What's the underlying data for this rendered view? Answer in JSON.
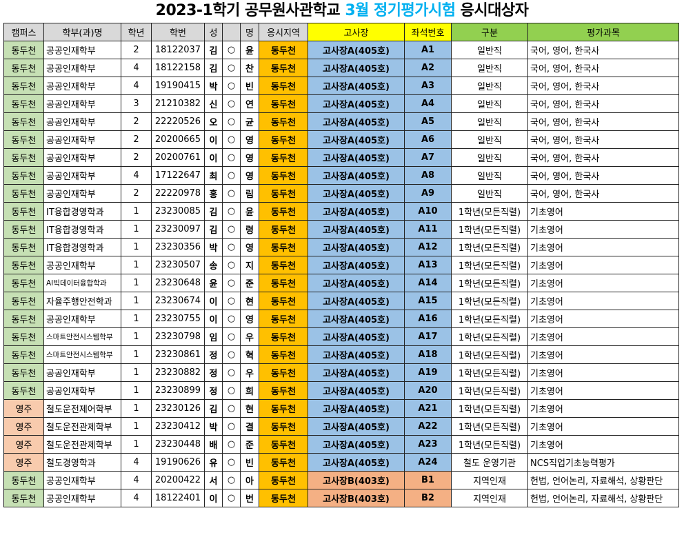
{
  "title": {
    "part1": "2023-1학기 공무원사관학교 ",
    "highlight": "3월 정기평가시험",
    "part2": " 응시대상자"
  },
  "colors": {
    "highlight": "#00b0f0",
    "campus_dongducheon": "#c6e0b4",
    "campus_yeongju": "#f8cbad",
    "region": "#ffc000",
    "room_a": "#9bc2e6",
    "room_b": "#f4b084",
    "header_yellow": "#ffff00",
    "header_green": "#92d050"
  },
  "columns": [
    "캠퍼스",
    "학부(과)명",
    "학년",
    "학번",
    "성",
    "",
    "명",
    "응시지역",
    "고사장",
    "좌석번호",
    "구분",
    "평가과목"
  ],
  "rows": [
    [
      "동두천",
      "공공인재학부",
      "2",
      "18122037",
      "김",
      "○",
      "윤",
      "동두천",
      "고사장A(405호)",
      "A1",
      "일반직",
      "국어, 영어, 한국사"
    ],
    [
      "동두천",
      "공공인재학부",
      "4",
      "18122158",
      "김",
      "○",
      "찬",
      "동두천",
      "고사장A(405호)",
      "A2",
      "일반직",
      "국어, 영어, 한국사"
    ],
    [
      "동두천",
      "공공인재학부",
      "4",
      "19190415",
      "박",
      "○",
      "빈",
      "동두천",
      "고사장A(405호)",
      "A3",
      "일반직",
      "국어, 영어, 한국사"
    ],
    [
      "동두천",
      "공공인재학부",
      "3",
      "21210382",
      "신",
      "○",
      "연",
      "동두천",
      "고사장A(405호)",
      "A4",
      "일반직",
      "국어, 영어, 한국사"
    ],
    [
      "동두천",
      "공공인재학부",
      "2",
      "22220526",
      "오",
      "○",
      "균",
      "동두천",
      "고사장A(405호)",
      "A5",
      "일반직",
      "국어, 영어, 한국사"
    ],
    [
      "동두천",
      "공공인재학부",
      "2",
      "20200665",
      "이",
      "○",
      "영",
      "동두천",
      "고사장A(405호)",
      "A6",
      "일반직",
      "국어, 영어, 한국사"
    ],
    [
      "동두천",
      "공공인재학부",
      "2",
      "20200761",
      "이",
      "○",
      "영",
      "동두천",
      "고사장A(405호)",
      "A7",
      "일반직",
      "국어, 영어, 한국사"
    ],
    [
      "동두천",
      "공공인재학부",
      "4",
      "17122647",
      "최",
      "○",
      "영",
      "동두천",
      "고사장A(405호)",
      "A8",
      "일반직",
      "국어, 영어, 한국사"
    ],
    [
      "동두천",
      "공공인재학부",
      "2",
      "22220978",
      "홍",
      "○",
      "림",
      "동두천",
      "고사장A(405호)",
      "A9",
      "일반직",
      "국어, 영어, 한국사"
    ],
    [
      "동두천",
      "IT융합경영학과",
      "1",
      "23230085",
      "김",
      "○",
      "윤",
      "동두천",
      "고사장A(405호)",
      "A10",
      "1학년(모든직렬)",
      "기초영어"
    ],
    [
      "동두천",
      "IT융합경영학과",
      "1",
      "23230097",
      "김",
      "○",
      "령",
      "동두천",
      "고사장A(405호)",
      "A11",
      "1학년(모든직렬)",
      "기초영어"
    ],
    [
      "동두천",
      "IT융합경영학과",
      "1",
      "23230356",
      "박",
      "○",
      "영",
      "동두천",
      "고사장A(405호)",
      "A12",
      "1학년(모든직렬)",
      "기초영어"
    ],
    [
      "동두천",
      "공공인재학부",
      "1",
      "23230507",
      "송",
      "○",
      "지",
      "동두천",
      "고사장A(405호)",
      "A13",
      "1학년(모든직렬)",
      "기초영어"
    ],
    [
      "동두천",
      "AI빅데이터융합학과",
      "1",
      "23230648",
      "윤",
      "○",
      "준",
      "동두천",
      "고사장A(405호)",
      "A14",
      "1학년(모든직렬)",
      "기초영어"
    ],
    [
      "동두천",
      "자율주행안전학과",
      "1",
      "23230674",
      "이",
      "○",
      "현",
      "동두천",
      "고사장A(405호)",
      "A15",
      "1학년(모든직렬)",
      "기초영어"
    ],
    [
      "동두천",
      "공공인재학부",
      "1",
      "23230755",
      "이",
      "○",
      "영",
      "동두천",
      "고사장A(405호)",
      "A16",
      "1학년(모든직렬)",
      "기초영어"
    ],
    [
      "동두천",
      "스마트안전시스템학부",
      "1",
      "23230798",
      "임",
      "○",
      "우",
      "동두천",
      "고사장A(405호)",
      "A17",
      "1학년(모든직렬)",
      "기초영어"
    ],
    [
      "동두천",
      "스마트안전시스템학부",
      "1",
      "23230861",
      "정",
      "○",
      "혁",
      "동두천",
      "고사장A(405호)",
      "A18",
      "1학년(모든직렬)",
      "기초영어"
    ],
    [
      "동두천",
      "공공인재학부",
      "1",
      "23230882",
      "정",
      "○",
      "우",
      "동두천",
      "고사장A(405호)",
      "A19",
      "1학년(모든직렬)",
      "기초영어"
    ],
    [
      "동두천",
      "공공인재학부",
      "1",
      "23230899",
      "정",
      "○",
      "희",
      "동두천",
      "고사장A(405호)",
      "A20",
      "1학년(모든직렬)",
      "기초영어"
    ],
    [
      "영주",
      "철도운전제어학부",
      "1",
      "23230126",
      "김",
      "○",
      "현",
      "동두천",
      "고사장A(405호)",
      "A21",
      "1학년(모든직렬)",
      "기초영어"
    ],
    [
      "영주",
      "철도운전관제학부",
      "1",
      "23230412",
      "박",
      "○",
      "결",
      "동두천",
      "고사장A(405호)",
      "A22",
      "1학년(모든직렬)",
      "기초영어"
    ],
    [
      "영주",
      "철도운전관제학부",
      "1",
      "23230448",
      "배",
      "○",
      "준",
      "동두천",
      "고사장A(405호)",
      "A23",
      "1학년(모든직렬)",
      "기초영어"
    ],
    [
      "영주",
      "철도경영학과",
      "4",
      "19190626",
      "유",
      "○",
      "빈",
      "동두천",
      "고사장A(405호)",
      "A24",
      "철도 운영기관",
      "NCS직업기초능력평가"
    ],
    [
      "동두천",
      "공공인재학부",
      "4",
      "20200422",
      "서",
      "○",
      "아",
      "동두천",
      "고사장B(403호)",
      "B1",
      "지역인재",
      "헌법, 언어논리, 자료해석, 상황판단"
    ],
    [
      "동두천",
      "공공인재학부",
      "4",
      "18122401",
      "이",
      "○",
      "번",
      "동두천",
      "고사장B(403호)",
      "B2",
      "지역인재",
      "헌법, 언어논리, 자료해석, 상황판단"
    ]
  ]
}
